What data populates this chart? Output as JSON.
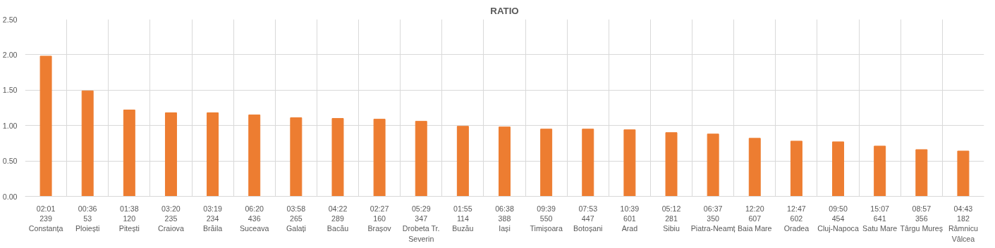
{
  "chart_data": {
    "type": "bar",
    "title": "RATIO",
    "categories": [
      "02:01\n239\nConstanța",
      "00:36\n53\nPloiești",
      "01:38\n120\nPitești",
      "03:20\n235\nCraiova",
      "03:19\n234\nBrăila",
      "06:20\n436\nSuceava",
      "03:58\n265\nGalați",
      "04:22\n289\nBacău",
      "02:27\n160\nBrașov",
      "05:29\n347\nDrobeta Tr. Severin",
      "01:55\n114\nBuzău",
      "06:38\n388\nIași",
      "09:39\n550\nTimișoara",
      "07:53\n447\nBotoșani",
      "10:39\n601\nArad",
      "05:12\n281\nSibiu",
      "06:37\n350\nPiatra-Neamț",
      "12:20\n607\nBaia Mare",
      "12:47\n602\nOradea",
      "09:50\n454\nCluj-Napoca",
      "15:07\n641\nSatu Mare",
      "08:57\n356\nTârgu Mureș",
      "04:43\n182\nRâmnicu Vâlcea"
    ],
    "values": [
      1.98,
      1.49,
      1.22,
      1.18,
      1.18,
      1.15,
      1.11,
      1.1,
      1.09,
      1.06,
      0.99,
      0.98,
      0.95,
      0.95,
      0.94,
      0.9,
      0.88,
      0.82,
      0.78,
      0.77,
      0.71,
      0.66,
      0.64
    ],
    "color": "#ed7d31",
    "ylim": [
      0,
      2.5
    ],
    "yticks": [
      {
        "value": 0,
        "label": "0.00"
      },
      {
        "value": 0.5,
        "label": "0.50"
      },
      {
        "value": 1,
        "label": "1.00"
      },
      {
        "value": 1.5,
        "label": "1.50"
      },
      {
        "value": 2,
        "label": "2.00"
      },
      {
        "value": 2.5,
        "label": "2.50"
      }
    ],
    "grid": true
  }
}
